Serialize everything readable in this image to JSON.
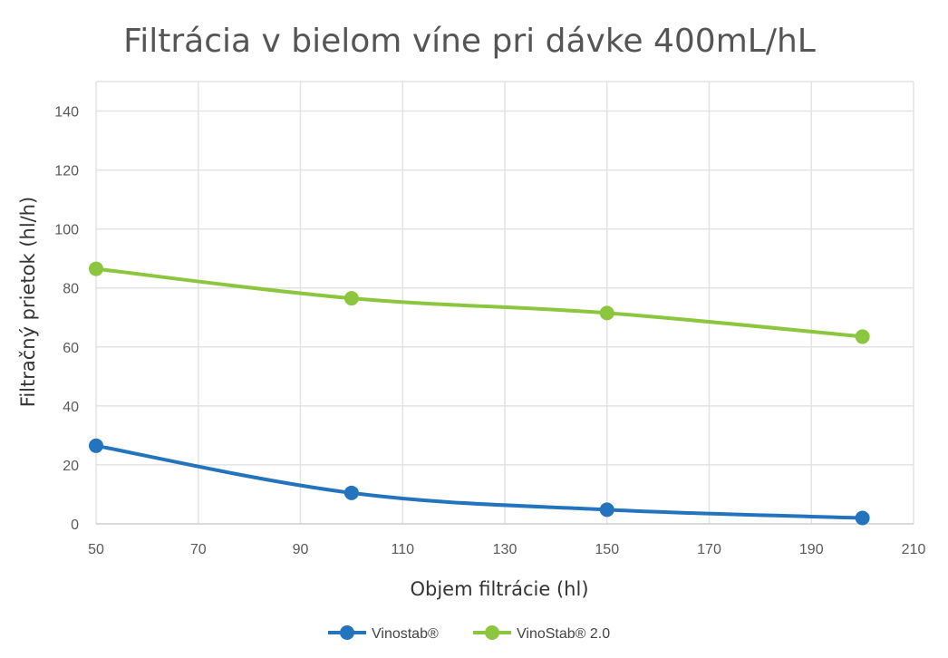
{
  "chart_data": {
    "type": "line",
    "title": "Filtrácia v bielom víne pri dávke 400mL/hL",
    "xlabel": "Objem filtrácie (hl)",
    "ylabel": "Filtračný prietok (hl/h)",
    "xlim": [
      50,
      210
    ],
    "ylim": [
      0,
      150
    ],
    "xticks": [
      "50",
      "70",
      "90",
      "110",
      "130",
      "150",
      "170",
      "190",
      "210"
    ],
    "yticks": [
      "0",
      "20",
      "40",
      "60",
      "80",
      "100",
      "120",
      "140"
    ],
    "grid": true,
    "legend_position": "bottom",
    "series": [
      {
        "name": "Vinostab®",
        "color": "#2474bd",
        "points": [
          {
            "x": 50,
            "y": 26.5
          },
          {
            "x": 100,
            "y": 10.5
          },
          {
            "x": 150,
            "y": 4.8
          },
          {
            "x": 200,
            "y": 2.0
          }
        ]
      },
      {
        "name": "VinoStab® 2.0",
        "color": "#8cc63e",
        "points": [
          {
            "x": 50,
            "y": 86.5
          },
          {
            "x": 100,
            "y": 76.5
          },
          {
            "x": 150,
            "y": 71.5
          },
          {
            "x": 200,
            "y": 63.5
          }
        ]
      }
    ]
  }
}
